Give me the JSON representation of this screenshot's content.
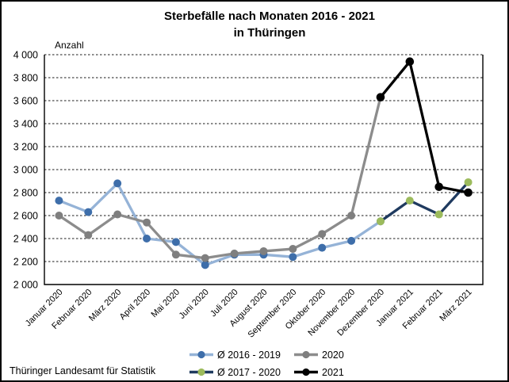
{
  "header": {
    "title": "Sterbefälle nach Monaten 2016 - 2021",
    "subtitle": "in Thüringen"
  },
  "footer": {
    "source": "Thüringer Landesamt für Statistik"
  },
  "chart_data": {
    "type": "line",
    "title": "Sterbefälle nach Monaten 2016 - 2021",
    "subtitle": "in Thüringen",
    "y_axis_label": "Anzahl",
    "xlabel": "",
    "ylabel": "Anzahl",
    "ylim": [
      2000,
      4000
    ],
    "ytick_step": 200,
    "grid": "dashed-horizontal",
    "legend_position": "bottom",
    "categories": [
      "Januar 2020",
      "Februar 2020",
      "März 2020",
      "April 2020",
      "Mai 2020",
      "Juni 2020",
      "Juli 2020",
      "August 2020",
      "September 2020",
      "Oktober 2020",
      "November 2020",
      "Dezember 2020",
      "Januar 2021",
      "Februar 2021",
      "März 2021"
    ],
    "series": [
      {
        "name": "Ø 2016 - 2019",
        "line_color": "#95B3D7",
        "marker_color": "#3E6EAA",
        "start_index": 0,
        "values": [
          2730,
          2630,
          2880,
          2400,
          2370,
          2170,
          2260,
          2260,
          2240,
          2320,
          2380,
          2550
        ]
      },
      {
        "name": "2020",
        "line_color": "#8C8C8C",
        "marker_color": "#7F7F7F",
        "start_index": 0,
        "values": [
          2600,
          2430,
          2610,
          2540,
          2260,
          2230,
          2270,
          2290,
          2310,
          2440,
          2600,
          3630
        ]
      },
      {
        "name": "Ø 2017 - 2020",
        "line_color": "#1F3A5F",
        "marker_color": "#9CBB5C",
        "start_index": 11,
        "values": [
          2550,
          2730,
          2610,
          2890
        ]
      },
      {
        "name": "2021",
        "line_color": "#000000",
        "marker_color": "#000000",
        "start_index": 11,
        "values": [
          3630,
          3940,
          2850,
          2800
        ]
      }
    ]
  }
}
